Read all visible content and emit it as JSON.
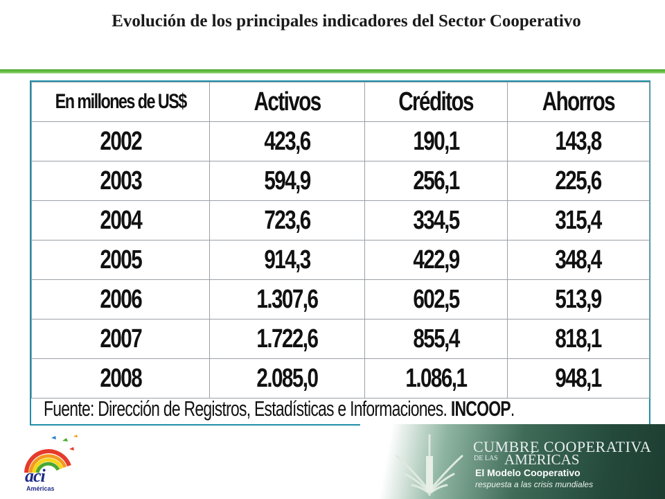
{
  "title": "Evolución de los principales indicadores del Sector Cooperativo",
  "table": {
    "header": [
      "En millones de US$",
      "Activos",
      "Créditos",
      "Ahorros"
    ],
    "rows": [
      [
        "2002",
        "423,6",
        "190,1",
        "143,8"
      ],
      [
        "2003",
        "594,9",
        "256,1",
        "225,6"
      ],
      [
        "2004",
        "723,6",
        "334,5",
        "315,4"
      ],
      [
        "2005",
        "914,3",
        "422,9",
        "348,4"
      ],
      [
        "2006",
        "1.307,6",
        "602,5",
        "513,9"
      ],
      [
        "2007",
        "1.722,6",
        "855,4",
        "818,1"
      ],
      [
        "2008",
        "2.085,0",
        "1.086,1",
        "948,1"
      ]
    ]
  },
  "source": {
    "text": "Fuente: Dirección de Registros, Estadísticas e Informaciones. ",
    "org": "INCOOP",
    "end": "."
  },
  "logos": {
    "aci": {
      "name": "aci",
      "sub": "Américas"
    },
    "cumbre": {
      "line1": "CUMBRE COOPERATIVA",
      "de_las": "DE LAS",
      "line2": "AMÉRICAS",
      "line3": "El Modelo Cooperativo",
      "line4": "respuesta a las crisis mundiales"
    }
  },
  "colors": {
    "title_rule": "#6cc046",
    "table_border": "#1f8fa8",
    "aci_blue": "#1e2b86",
    "banner_dark": "#244a3c"
  }
}
